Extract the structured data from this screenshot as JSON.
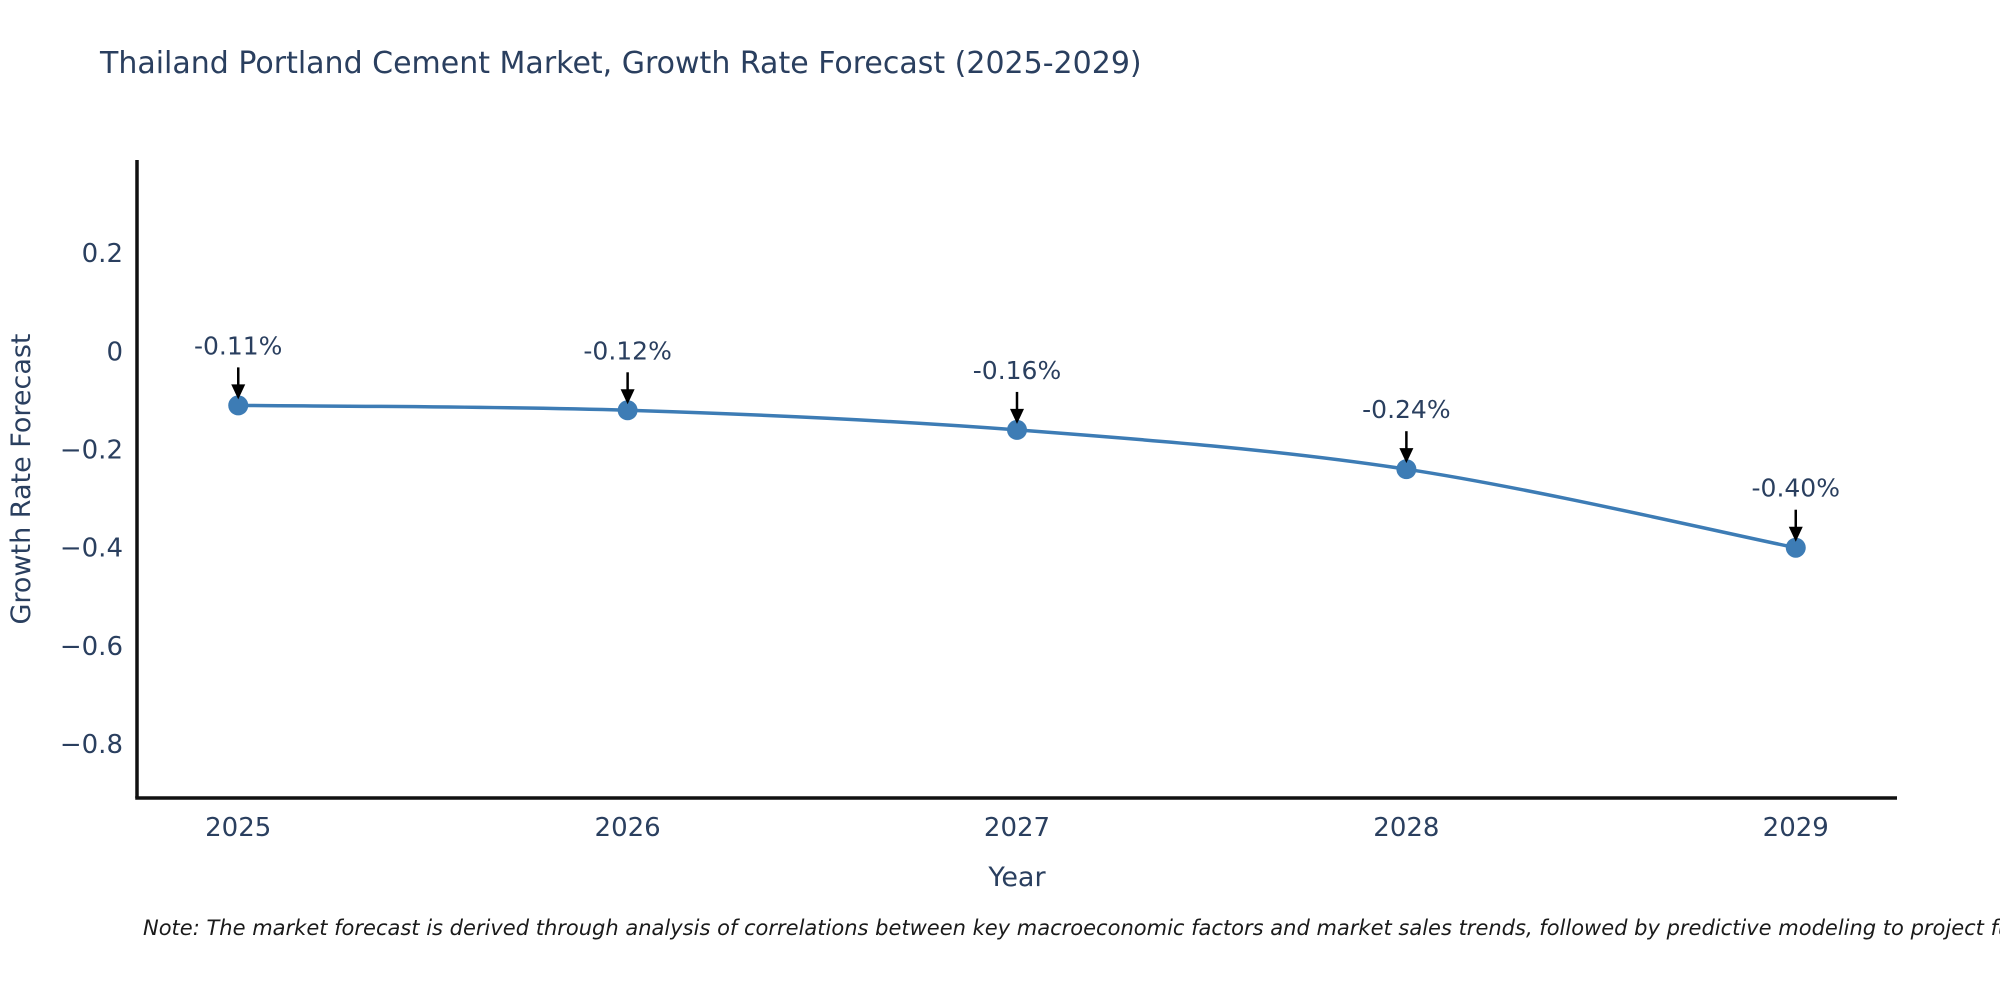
{
  "note": "Note: The market forecast is derived through analysis of correlations between key macroeconomic factors and market sales trends, followed by predictive modeling to project future sa",
  "chart_data": {
    "type": "line",
    "title": "Thailand Portland Cement Market, Growth Rate Forecast (2025-2029)",
    "xlabel": "Year",
    "ylabel": "Growth Rate Forecast",
    "series": [
      {
        "name": "Growth Rate Forecast",
        "x": [
          2025,
          2026,
          2027,
          2028,
          2029
        ],
        "values": [
          -0.11,
          -0.12,
          -0.16,
          -0.24,
          -0.4
        ],
        "point_labels": [
          "-0.11%",
          "-0.12%",
          "-0.16%",
          "-0.24%",
          "-0.40%"
        ]
      }
    ],
    "xlim": [
      2024.74,
      2029.26
    ],
    "ylim": [
      -0.91,
      0.39
    ],
    "xticks": [
      2025,
      2026,
      2027,
      2028,
      2029
    ],
    "xtick_labels": [
      "2025",
      "2026",
      "2027",
      "2028",
      "2029"
    ],
    "yticks": [
      0.2,
      0,
      -0.2,
      -0.4,
      -0.6,
      -0.8
    ],
    "ytick_labels": [
      "0.2",
      "0",
      "−0.2",
      "−0.4",
      "−0.6",
      "−0.8"
    ],
    "grid": false,
    "legend": false,
    "line_color": "#3d7cb5",
    "marker_color": "#3d7cb5",
    "axis_color": "#111111",
    "text_color": "#2a3f5f",
    "arrow_color": "#000000"
  }
}
